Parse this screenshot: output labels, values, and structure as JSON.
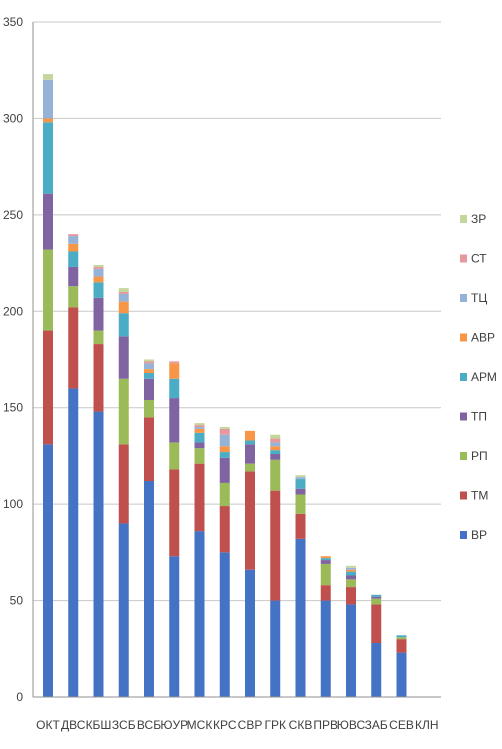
{
  "chart_data": {
    "type": "bar",
    "stacked": true,
    "categories": [
      "ОКТ",
      "ДВС",
      "КБШ",
      "ЗСБ",
      "ВСБ",
      "ЮУР",
      "МСК",
      "КРС",
      "СВР",
      "ГРК",
      "СКВ",
      "ПРВ",
      "ЮВС",
      "ЗАБ",
      "СЕВ",
      "КЛН"
    ],
    "ylim": [
      0,
      350
    ],
    "yticks": [
      0,
      50,
      100,
      150,
      200,
      250,
      300,
      350
    ],
    "grid": true,
    "legend_position": "right",
    "series": [
      {
        "name": "ВР",
        "color": "#4472c4",
        "values": [
          131,
          160,
          148,
          90,
          112,
          73,
          86,
          75,
          66,
          50,
          82,
          50,
          48,
          28,
          23,
          0
        ]
      },
      {
        "name": "ТМ",
        "color": "#c0504d",
        "values": [
          59,
          42,
          35,
          41,
          33,
          45,
          35,
          24,
          51,
          57,
          13,
          8,
          9,
          20,
          7,
          0
        ]
      },
      {
        "name": "РП",
        "color": "#9bbb59",
        "values": [
          42,
          11,
          7,
          34,
          9,
          14,
          8,
          12,
          4,
          16,
          10,
          11,
          4,
          3,
          1,
          0
        ]
      },
      {
        "name": "ТП",
        "color": "#8064a2",
        "values": [
          29,
          10,
          17,
          22,
          11,
          23,
          3,
          13,
          10,
          3,
          3,
          2,
          2,
          1,
          0,
          0
        ]
      },
      {
        "name": "АРМ",
        "color": "#4bacc6",
        "values": [
          37,
          8,
          8,
          12,
          3,
          10,
          5,
          3,
          2,
          2,
          5,
          1,
          2,
          1,
          1,
          0
        ]
      },
      {
        "name": "АВР",
        "color": "#f79646",
        "values": [
          2,
          4,
          3,
          6,
          2,
          8,
          2,
          3,
          5,
          2,
          0,
          1,
          1,
          0,
          0,
          0
        ]
      },
      {
        "name": "ТЦ",
        "color": "#95b3d7",
        "values": [
          20,
          4,
          4,
          4,
          3,
          0,
          1,
          6,
          0,
          2,
          1,
          0,
          1,
          0,
          0,
          0
        ]
      },
      {
        "name": "СТ",
        "color": "#e6989c",
        "values": [
          0,
          1,
          1,
          1,
          1,
          1,
          1,
          3,
          0,
          2,
          0,
          0,
          0,
          0,
          0,
          0
        ]
      },
      {
        "name": "ЗР",
        "color": "#c3d69b",
        "values": [
          3,
          0,
          1,
          2,
          1,
          0,
          1,
          1,
          0,
          2,
          1,
          0,
          1,
          0,
          0,
          0
        ]
      }
    ]
  }
}
